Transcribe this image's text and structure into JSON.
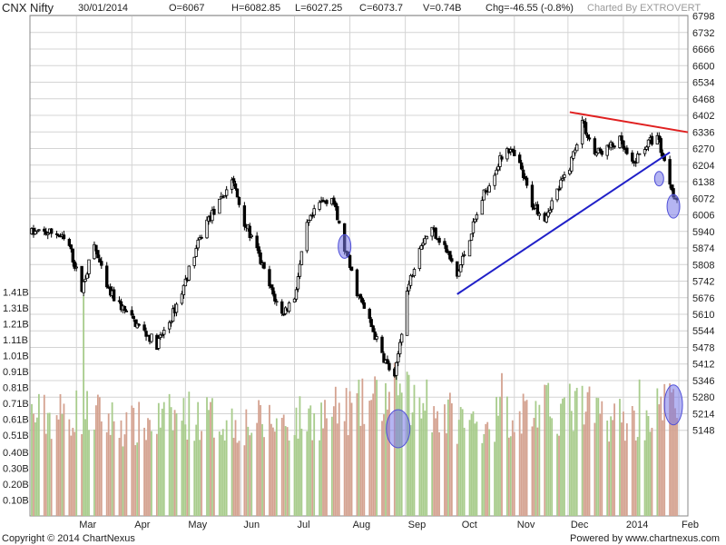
{
  "header": {
    "symbol": "CNX Nifty",
    "date": "30/01/2014",
    "open": "O=6067",
    "high": "H=6082.85",
    "low": "L=6027.25",
    "close": "C=6073.7",
    "volume": "V=0.74B",
    "change": "Chg=-46.55 (-0.8%)",
    "credit": "Charted By EXTROVERT"
  },
  "footer": {
    "copyright": "Copyright © 2014 ChartNexus",
    "powered": "Powered by www.chartnexus.com"
  },
  "colors": {
    "up_volume": "#a8cc8c",
    "down_volume": "#d4a290",
    "candles": "#000000",
    "resistance_line": "#e02020",
    "support_line": "#2020c8",
    "highlight": "#7878e8",
    "grid": "#d4d4d4"
  },
  "chart_data": {
    "type": "candlestick",
    "title": "CNX Nifty",
    "price_axis": {
      "ticks": [
        "6798",
        "6732",
        "6666",
        "6600",
        "6534",
        "6468",
        "6402",
        "6336",
        "6270",
        "6204",
        "6138",
        "6072",
        "6006",
        "5940",
        "5874",
        "5808",
        "5742",
        "5676",
        "5610",
        "5544",
        "5478",
        "5412",
        "5346",
        "5280",
        "5214",
        "5148"
      ],
      "range": [
        5100,
        6800
      ]
    },
    "volume_axis": {
      "ticks": [
        "1.41B",
        "1.31B",
        "1.21B",
        "1.11B",
        "1.01B",
        "0.91B",
        "0.81B",
        "0.71B",
        "0.61B",
        "0.51B",
        "0.40B",
        "0.30B",
        "0.20B",
        "0.10B"
      ],
      "range": [
        0,
        1.46
      ]
    },
    "x_axis": {
      "labels": [
        "Mar",
        "Apr",
        "May",
        "Jun",
        "Jul",
        "Aug",
        "Sep",
        "Oct",
        "Nov",
        "Dec",
        "2014",
        "Feb"
      ]
    },
    "grid": true,
    "price_path": [
      [
        "2013-02-18",
        5935
      ],
      [
        "2013-02-25",
        5880
      ],
      [
        "2013-03-04",
        5710
      ],
      [
        "2013-03-11",
        5885
      ],
      [
        "2013-03-18",
        5710
      ],
      [
        "2013-03-25",
        5650
      ],
      [
        "2013-04-01",
        5590
      ],
      [
        "2013-04-08",
        5540
      ],
      [
        "2013-04-15",
        5490
      ],
      [
        "2013-04-22",
        5580
      ],
      [
        "2013-04-29",
        5700
      ],
      [
        "2013-05-06",
        5850
      ],
      [
        "2013-05-13",
        5980
      ],
      [
        "2013-05-20",
        6050
      ],
      [
        "2013-05-27",
        6150
      ],
      [
        "2013-06-03",
        5980
      ],
      [
        "2013-06-10",
        5860
      ],
      [
        "2013-06-17",
        5720
      ],
      [
        "2013-06-24",
        5610
      ],
      [
        "2013-07-01",
        5680
      ],
      [
        "2013-07-08",
        5960
      ],
      [
        "2013-07-15",
        6050
      ],
      [
        "2013-07-22",
        6080
      ],
      [
        "2013-07-29",
        5870
      ],
      [
        "2013-08-05",
        5700
      ],
      [
        "2013-08-12",
        5580
      ],
      [
        "2013-08-19",
        5450
      ],
      [
        "2013-08-26",
        5350
      ],
      [
        "2013-09-02",
        5700
      ],
      [
        "2013-09-09",
        5890
      ],
      [
        "2013-09-16",
        5950
      ],
      [
        "2013-09-23",
        5880
      ],
      [
        "2013-09-30",
        5760
      ],
      [
        "2013-10-07",
        5920
      ],
      [
        "2013-10-14",
        6070
      ],
      [
        "2013-10-21",
        6180
      ],
      [
        "2013-10-28",
        6280
      ],
      [
        "2013-11-04",
        6200
      ],
      [
        "2013-11-11",
        6050
      ],
      [
        "2013-11-18",
        6000
      ],
      [
        "2013-11-25",
        6100
      ],
      [
        "2013-12-02",
        6200
      ],
      [
        "2013-12-09",
        6380
      ],
      [
        "2013-12-16",
        6250
      ],
      [
        "2013-12-23",
        6270
      ],
      [
        "2013-12-30",
        6300
      ],
      [
        "2014-01-06",
        6200
      ],
      [
        "2014-01-13",
        6280
      ],
      [
        "2014-01-20",
        6320
      ],
      [
        "2014-01-27",
        6140
      ],
      [
        "2014-01-30",
        6073.7
      ]
    ],
    "volume_profile": [
      [
        "2013-02-18",
        0.65
      ],
      [
        "2013-03-04",
        0.68
      ],
      [
        "2013-04-01",
        0.58
      ],
      [
        "2013-05-01",
        0.66
      ],
      [
        "2013-06-03",
        0.6
      ],
      [
        "2013-07-01",
        0.62
      ],
      [
        "2013-08-05",
        0.7
      ],
      [
        "2013-08-26",
        0.8
      ],
      [
        "2013-09-09",
        0.72
      ],
      [
        "2013-10-07",
        0.6
      ],
      [
        "2013-11-04",
        0.68
      ],
      [
        "2013-12-02",
        0.7
      ],
      [
        "2014-01-06",
        0.62
      ],
      [
        "2014-01-30",
        0.74
      ]
    ],
    "volume_notable": [
      [
        "2013-03-05",
        1.39
      ],
      [
        "2013-08-28",
        0.76
      ],
      [
        "2013-09-13",
        0.86
      ],
      [
        "2013-10-25",
        0.9
      ],
      [
        "2013-12-09",
        0.82
      ],
      [
        "2014-01-10",
        0.86
      ],
      [
        "2014-01-29",
        0.8
      ]
    ],
    "trendlines": [
      {
        "from": [
          "2013-12-02",
          6415
        ],
        "to": [
          "2014-01-31",
          6335
        ],
        "color": "#e02020"
      },
      {
        "from": [
          "2013-09-30",
          5690
        ],
        "to": [
          "2014-01-27",
          6255
        ],
        "color": "#2020c8"
      }
    ],
    "highlights": [
      {
        "panel": "price",
        "date": "2013-07-29",
        "value": 5880
      },
      {
        "panel": "volume",
        "date": "2013-08-28",
        "value": 0.55
      },
      {
        "panel": "price",
        "date": "2014-01-21",
        "value": 6150
      },
      {
        "panel": "price",
        "date": "2014-01-29",
        "value": 6040
      },
      {
        "panel": "volume",
        "date": "2014-01-29",
        "value": 0.7
      }
    ]
  }
}
